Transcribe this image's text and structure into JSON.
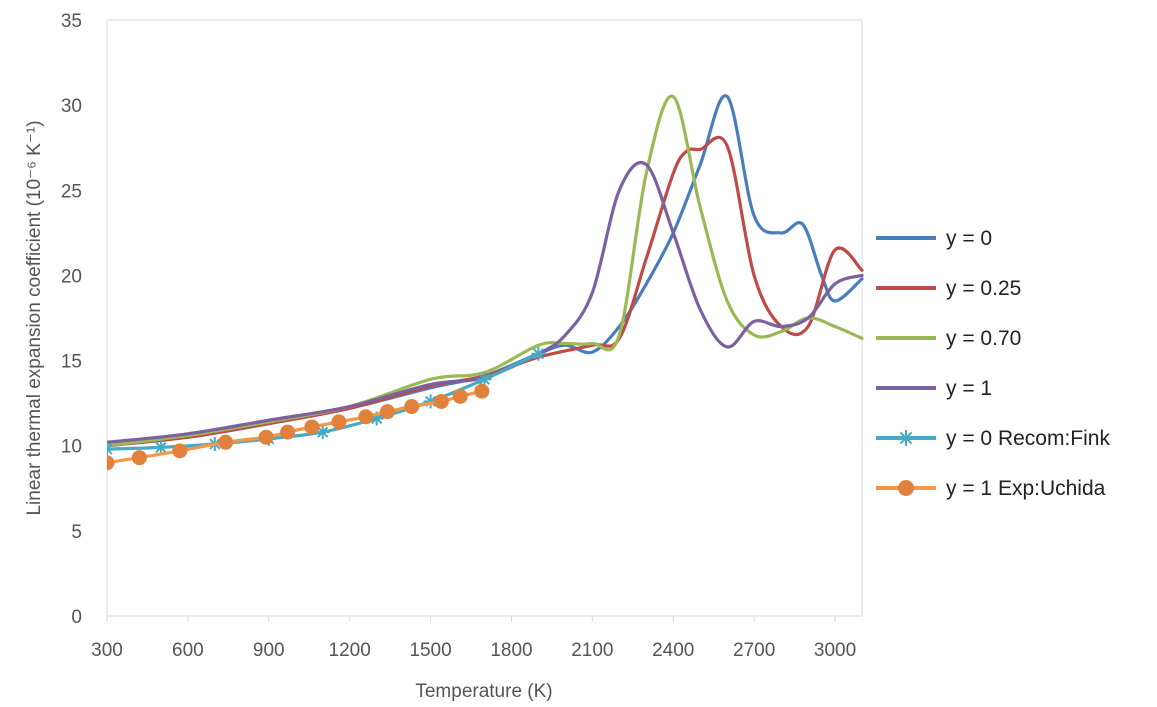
{
  "chart_data": {
    "type": "line",
    "xlabel": "Temperature (K)",
    "ylabel": "Linear thermal expansion coefficient (10⁻⁶ K⁻¹)",
    "xlim": [
      300,
      3100
    ],
    "ylim": [
      0,
      35
    ],
    "x_ticks": [
      "300",
      "600",
      "900",
      "1200",
      "1500",
      "1800",
      "2100",
      "2400",
      "2700",
      "3000"
    ],
    "y_ticks": [
      "0",
      "5",
      "10",
      "15",
      "20",
      "25",
      "30",
      "35"
    ],
    "grid": false,
    "legend_position": "right",
    "series": [
      {
        "name": "y = 0",
        "color": "#4a7ebb",
        "marker": "none",
        "x": [
          300,
          600,
          900,
          1200,
          1500,
          1700,
          1900,
          2000,
          2100,
          2200,
          2300,
          2400,
          2500,
          2600,
          2700,
          2800,
          2880,
          2950,
          3000,
          3100
        ],
        "y": [
          10.0,
          10.5,
          11.3,
          12.2,
          13.4,
          14.1,
          15.4,
          15.9,
          15.5,
          17.0,
          19.5,
          22.5,
          26.5,
          30.5,
          23.5,
          22.5,
          23.0,
          20.0,
          18.5,
          19.8
        ]
      },
      {
        "name": "y = 0.25",
        "color": "#be4b48",
        "marker": "none",
        "x": [
          300,
          600,
          900,
          1200,
          1500,
          1700,
          1900,
          2100,
          2200,
          2300,
          2400,
          2450,
          2500,
          2600,
          2700,
          2800,
          2900,
          3000,
          3100
        ],
        "y": [
          10.0,
          10.5,
          11.3,
          12.2,
          13.5,
          14.1,
          15.2,
          15.9,
          16.3,
          21.0,
          26.0,
          27.3,
          27.4,
          27.6,
          20.0,
          17.0,
          17.0,
          21.5,
          20.3
        ]
      },
      {
        "name": "y = 0.70",
        "color": "#98b954",
        "marker": "none",
        "x": [
          300,
          600,
          900,
          1200,
          1500,
          1700,
          1900,
          2000,
          2100,
          2200,
          2300,
          2400,
          2500,
          2600,
          2700,
          2800,
          2900,
          3000,
          3100
        ],
        "y": [
          10.0,
          10.6,
          11.4,
          12.3,
          13.9,
          14.3,
          15.9,
          16.0,
          16.0,
          16.5,
          26.0,
          30.5,
          24.0,
          18.5,
          16.5,
          16.7,
          17.5,
          17.0,
          16.3
        ]
      },
      {
        "name": "y = 1",
        "color": "#7d60a0",
        "marker": "none",
        "x": [
          300,
          600,
          900,
          1200,
          1500,
          1700,
          1900,
          2000,
          2100,
          2200,
          2300,
          2400,
          2500,
          2600,
          2700,
          2800,
          2900,
          3000,
          3100
        ],
        "y": [
          10.2,
          10.7,
          11.5,
          12.3,
          13.6,
          14.0,
          15.4,
          16.5,
          19.0,
          25.0,
          26.5,
          22.5,
          18.0,
          15.8,
          17.3,
          17.0,
          17.5,
          19.5,
          20.0
        ]
      },
      {
        "name": "y = 0 Recom:Fink",
        "color": "#46aac5",
        "marker": "star",
        "x": [
          300,
          500,
          700,
          900,
          1100,
          1300,
          1500,
          1700,
          1900
        ],
        "y": [
          9.8,
          9.9,
          10.1,
          10.4,
          10.8,
          11.6,
          12.6,
          13.9,
          15.4
        ]
      },
      {
        "name": "y = 1 Exp:Uchida",
        "color": "#f79646",
        "marker": "circle",
        "marker_color": "#e0823e",
        "x": [
          300,
          420,
          570,
          740,
          890,
          970,
          1060,
          1160,
          1260,
          1340,
          1430,
          1540,
          1610,
          1690
        ],
        "y": [
          9.0,
          9.3,
          9.7,
          10.2,
          10.5,
          10.8,
          11.1,
          11.4,
          11.7,
          12.0,
          12.3,
          12.6,
          12.9,
          13.2
        ]
      }
    ]
  }
}
